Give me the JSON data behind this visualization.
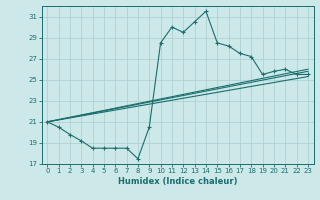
{
  "xlabel": "Humidex (Indice chaleur)",
  "bg_color": "#cce8e8",
  "grid_color": "#aacece",
  "line_color": "#1a6e6e",
  "xlim": [
    -0.5,
    23.5
  ],
  "ylim": [
    17,
    32
  ],
  "yticks": [
    17,
    19,
    21,
    23,
    25,
    27,
    29,
    31
  ],
  "xticks": [
    0,
    1,
    2,
    3,
    4,
    5,
    6,
    7,
    8,
    9,
    10,
    11,
    12,
    13,
    14,
    15,
    16,
    17,
    18,
    19,
    20,
    21,
    22,
    23
  ],
  "series_main": {
    "x": [
      0,
      1,
      2,
      3,
      4,
      5,
      6,
      7,
      8,
      9,
      10,
      11,
      12,
      13,
      14,
      15,
      16,
      17,
      18,
      19,
      20,
      21,
      22,
      23
    ],
    "y": [
      21.0,
      20.5,
      19.8,
      19.2,
      18.5,
      18.5,
      18.5,
      18.5,
      17.5,
      20.5,
      28.5,
      30.0,
      29.5,
      30.5,
      31.5,
      28.5,
      28.2,
      27.5,
      27.2,
      25.5,
      25.8,
      26.0,
      25.5,
      25.5
    ]
  },
  "series_lines": [
    {
      "x": [
        0,
        23
      ],
      "y": [
        21.0,
        26.0
      ]
    },
    {
      "x": [
        0,
        23
      ],
      "y": [
        21.0,
        25.3
      ]
    },
    {
      "x": [
        0,
        23
      ],
      "y": [
        21.0,
        25.8
      ]
    }
  ]
}
